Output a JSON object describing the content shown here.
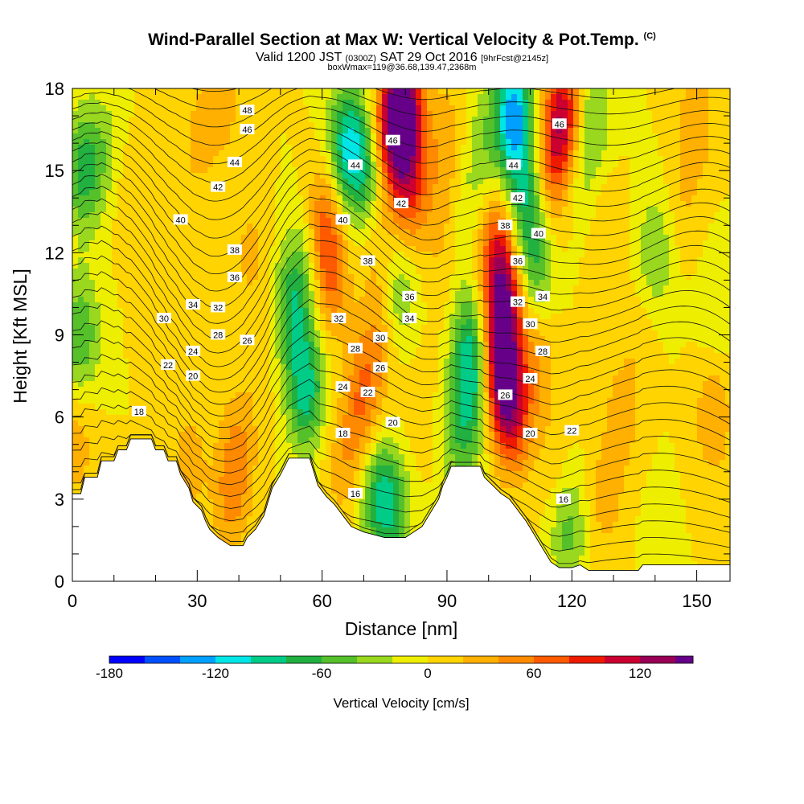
{
  "header": {
    "title_main": "Wind-Parallel Section at Max W: Vertical Velocity & Pot.Temp.",
    "title_mark": "(C)",
    "valid_a": "Valid 1200 JST",
    "valid_b": "(0300Z)",
    "valid_c": "SAT 29 Oct 2016",
    "valid_d": "[9hrFcst@2145z]",
    "boxinfo": "boxWmax=119@36.68,139.47,2368m"
  },
  "colors": {
    "scale": [
      "#0000ff",
      "#0050ff",
      "#00a0ff",
      "#00e6e6",
      "#00cc88",
      "#22b040",
      "#55c02a",
      "#99d81e",
      "#eeee00",
      "#ffd400",
      "#ffb000",
      "#ff8a00",
      "#ff5a00",
      "#ee1a00",
      "#cc0030",
      "#990055",
      "#660088"
    ],
    "terrain": "#ffffff"
  },
  "chart_data": {
    "type": "contour-section",
    "xlabel": "Distance [nm]",
    "ylabel": "Height [Kft MSL]",
    "xlim": [
      0,
      158
    ],
    "ylim": [
      0,
      18
    ],
    "x_ticks": [
      "0",
      "30",
      "60",
      "90",
      "120",
      "150"
    ],
    "y_ticks": [
      "0",
      "3",
      "6",
      "9",
      "12",
      "15",
      "18"
    ],
    "colorbar": {
      "title": "Vertical Velocity [cm/s]",
      "ticks": [
        "-180",
        "-120",
        "-60",
        "0",
        "60",
        "120"
      ],
      "tick_values": [
        -180,
        -120,
        -60,
        0,
        60,
        120
      ],
      "range": [
        -180,
        150
      ],
      "step": 20
    },
    "terrain_top_kft": [
      [
        0,
        3.2
      ],
      [
        2,
        3.2
      ],
      [
        3,
        3.8
      ],
      [
        6,
        3.8
      ],
      [
        7,
        4.4
      ],
      [
        10,
        4.4
      ],
      [
        11,
        4.8
      ],
      [
        13,
        4.8
      ],
      [
        14,
        5.2
      ],
      [
        19,
        5.2
      ],
      [
        20,
        4.8
      ],
      [
        22,
        4.8
      ],
      [
        23,
        4.4
      ],
      [
        25,
        4.4
      ],
      [
        26,
        3.9
      ],
      [
        28,
        3.4
      ],
      [
        29,
        2.9
      ],
      [
        31,
        2.6
      ],
      [
        32,
        2.2
      ],
      [
        33,
        1.9
      ],
      [
        35,
        1.6
      ],
      [
        38,
        1.3
      ],
      [
        41,
        1.3
      ],
      [
        42,
        1.6
      ],
      [
        44,
        1.9
      ],
      [
        46,
        2.4
      ],
      [
        47,
        2.9
      ],
      [
        48,
        3.4
      ],
      [
        50,
        3.9
      ],
      [
        52,
        4.5
      ],
      [
        57,
        4.5
      ],
      [
        58,
        4.0
      ],
      [
        59,
        3.5
      ],
      [
        61,
        3.1
      ],
      [
        63,
        2.8
      ],
      [
        65,
        2.4
      ],
      [
        67,
        2.0
      ],
      [
        70,
        1.8
      ],
      [
        75,
        1.6
      ],
      [
        80,
        1.6
      ],
      [
        84,
        2.0
      ],
      [
        86,
        2.5
      ],
      [
        88,
        3.0
      ],
      [
        89,
        3.5
      ],
      [
        90,
        3.8
      ],
      [
        91,
        4.2
      ],
      [
        98,
        4.2
      ],
      [
        99,
        3.8
      ],
      [
        101,
        3.5
      ],
      [
        103,
        3.2
      ],
      [
        105,
        3.0
      ],
      [
        107,
        2.6
      ],
      [
        109,
        2.2
      ],
      [
        111,
        1.7
      ],
      [
        113,
        1.2
      ],
      [
        115,
        0.7
      ],
      [
        117,
        0.5
      ],
      [
        120,
        0.5
      ],
      [
        122,
        0.6
      ],
      [
        124,
        0.4
      ],
      [
        136,
        0.4
      ],
      [
        137,
        0.6
      ],
      [
        158,
        0.6
      ]
    ],
    "vv_features": [
      {
        "x": 2,
        "y": 9,
        "v": -60
      },
      {
        "x": 3,
        "y": 15,
        "v": -70
      },
      {
        "x": 8,
        "y": 16,
        "v": -20
      },
      {
        "x": 14,
        "y": 14,
        "v": 15
      },
      {
        "x": 20,
        "y": 11,
        "v": 10
      },
      {
        "x": 25,
        "y": 9,
        "v": 8
      },
      {
        "x": 28,
        "y": 4.3,
        "v": 30
      },
      {
        "x": 40,
        "y": 5,
        "v": 35
      },
      {
        "x": 38,
        "y": 3,
        "v": 40
      },
      {
        "x": 45,
        "y": 8,
        "v": 12
      },
      {
        "x": 43,
        "y": 12,
        "v": 25
      },
      {
        "x": 30,
        "y": 16,
        "v": 25
      },
      {
        "x": 36,
        "y": 17.5,
        "v": 30
      },
      {
        "x": 53,
        "y": 10,
        "v": -70
      },
      {
        "x": 56,
        "y": 7,
        "v": -90
      },
      {
        "x": 57,
        "y": 12,
        "v": -40
      },
      {
        "x": 60,
        "y": 13,
        "v": 70
      },
      {
        "x": 62,
        "y": 11,
        "v": 55
      },
      {
        "x": 66,
        "y": 16,
        "v": -90
      },
      {
        "x": 70,
        "y": 15,
        "v": -60
      },
      {
        "x": 74,
        "y": 12,
        "v": 25
      },
      {
        "x": 77,
        "y": 16.5,
        "v": 110
      },
      {
        "x": 81,
        "y": 14.5,
        "v": 80
      },
      {
        "x": 80,
        "y": 17.5,
        "v": 120
      },
      {
        "x": 70,
        "y": 7,
        "v": 50
      },
      {
        "x": 74,
        "y": 9,
        "v": 35
      },
      {
        "x": 68,
        "y": 5,
        "v": 30
      },
      {
        "x": 64,
        "y": 4,
        "v": 20
      },
      {
        "x": 73,
        "y": 3.2,
        "v": -60
      },
      {
        "x": 77,
        "y": 2.6,
        "v": -60
      },
      {
        "x": 78,
        "y": 10.5,
        "v": -45
      },
      {
        "x": 83,
        "y": 6,
        "v": 15
      },
      {
        "x": 88,
        "y": 13,
        "v": 20
      },
      {
        "x": 90,
        "y": 10,
        "v": 10
      },
      {
        "x": 96,
        "y": 7,
        "v": -70
      },
      {
        "x": 95,
        "y": 9,
        "v": -55
      },
      {
        "x": 93,
        "y": 5,
        "v": -40
      },
      {
        "x": 99,
        "y": 16,
        "v": -30
      },
      {
        "x": 103,
        "y": 7.5,
        "v": 120
      },
      {
        "x": 104,
        "y": 10,
        "v": 110
      },
      {
        "x": 102,
        "y": 12,
        "v": 80
      },
      {
        "x": 106,
        "y": 6,
        "v": 80
      },
      {
        "x": 106,
        "y": 17,
        "v": -130
      },
      {
        "x": 109,
        "y": 14,
        "v": -70
      },
      {
        "x": 111,
        "y": 11.5,
        "v": -55
      },
      {
        "x": 118,
        "y": 17,
        "v": 110
      },
      {
        "x": 115,
        "y": 15,
        "v": 60
      },
      {
        "x": 112,
        "y": 8,
        "v": 35
      },
      {
        "x": 116,
        "y": 4,
        "v": 20
      },
      {
        "x": 119,
        "y": 2,
        "v": -50
      },
      {
        "x": 122,
        "y": 15,
        "v": -30
      },
      {
        "x": 125,
        "y": 17,
        "v": -40
      },
      {
        "x": 128,
        "y": 13,
        "v": 20
      },
      {
        "x": 128,
        "y": 3,
        "v": 30
      },
      {
        "x": 132,
        "y": 6,
        "v": 30
      },
      {
        "x": 136,
        "y": 9,
        "v": 15
      },
      {
        "x": 140,
        "y": 12,
        "v": -40
      },
      {
        "x": 147,
        "y": 14,
        "v": 20
      },
      {
        "x": 150,
        "y": 17,
        "v": 35
      },
      {
        "x": 155,
        "y": 10,
        "v": -20
      },
      {
        "x": 150,
        "y": 3,
        "v": 0
      },
      {
        "x": 140,
        "y": 2,
        "v": -5
      },
      {
        "x": 154,
        "y": 6,
        "v": 40
      },
      {
        "x": 1,
        "y": 5,
        "v": 30
      },
      {
        "x": 90,
        "y": 16,
        "v": 35
      },
      {
        "x": 95,
        "y": 14,
        "v": -20
      }
    ],
    "contour_labels": [
      {
        "text": "48",
        "x": 42,
        "y": 17.2
      },
      {
        "text": "46",
        "x": 42,
        "y": 16.5
      },
      {
        "text": "44",
        "x": 39,
        "y": 15.3
      },
      {
        "text": "42",
        "x": 35,
        "y": 14.4
      },
      {
        "text": "40",
        "x": 26,
        "y": 13.2
      },
      {
        "text": "38",
        "x": 39,
        "y": 12.1
      },
      {
        "text": "36",
        "x": 39,
        "y": 11.1
      },
      {
        "text": "34",
        "x": 29,
        "y": 10.1
      },
      {
        "text": "32",
        "x": 35,
        "y": 10.0
      },
      {
        "text": "30",
        "x": 22,
        "y": 9.6
      },
      {
        "text": "28",
        "x": 35,
        "y": 9.0
      },
      {
        "text": "26",
        "x": 42,
        "y": 8.8
      },
      {
        "text": "24",
        "x": 29,
        "y": 8.4
      },
      {
        "text": "22",
        "x": 23,
        "y": 7.9
      },
      {
        "text": "20",
        "x": 29,
        "y": 7.5
      },
      {
        "text": "18",
        "x": 16,
        "y": 6.2
      },
      {
        "text": "46",
        "x": 77,
        "y": 16.1
      },
      {
        "text": "44",
        "x": 68,
        "y": 15.2
      },
      {
        "text": "42",
        "x": 79,
        "y": 13.8
      },
      {
        "text": "40",
        "x": 65,
        "y": 13.2
      },
      {
        "text": "38",
        "x": 71,
        "y": 11.7
      },
      {
        "text": "36",
        "x": 81,
        "y": 10.4
      },
      {
        "text": "34",
        "x": 81,
        "y": 9.6
      },
      {
        "text": "32",
        "x": 64,
        "y": 9.6
      },
      {
        "text": "30",
        "x": 74,
        "y": 8.9
      },
      {
        "text": "28",
        "x": 68,
        "y": 8.5
      },
      {
        "text": "26",
        "x": 74,
        "y": 7.8
      },
      {
        "text": "24",
        "x": 65,
        "y": 7.1
      },
      {
        "text": "22",
        "x": 71,
        "y": 6.9
      },
      {
        "text": "20",
        "x": 77,
        "y": 5.8
      },
      {
        "text": "18",
        "x": 65,
        "y": 5.4
      },
      {
        "text": "16",
        "x": 68,
        "y": 3.2
      },
      {
        "text": "46",
        "x": 117,
        "y": 16.7
      },
      {
        "text": "44",
        "x": 106,
        "y": 15.2
      },
      {
        "text": "42",
        "x": 107,
        "y": 14.0
      },
      {
        "text": "40",
        "x": 112,
        "y": 12.7
      },
      {
        "text": "38",
        "x": 104,
        "y": 13.0
      },
      {
        "text": "36",
        "x": 107,
        "y": 11.7
      },
      {
        "text": "34",
        "x": 113,
        "y": 10.4
      },
      {
        "text": "32",
        "x": 107,
        "y": 10.2
      },
      {
        "text": "30",
        "x": 110,
        "y": 9.4
      },
      {
        "text": "28",
        "x": 113,
        "y": 8.4
      },
      {
        "text": "26",
        "x": 104,
        "y": 6.8
      },
      {
        "text": "24",
        "x": 110,
        "y": 7.4
      },
      {
        "text": "22",
        "x": 120,
        "y": 5.5
      },
      {
        "text": "20",
        "x": 110,
        "y": 5.4
      },
      {
        "text": "16",
        "x": 118,
        "y": 3.0
      }
    ]
  }
}
